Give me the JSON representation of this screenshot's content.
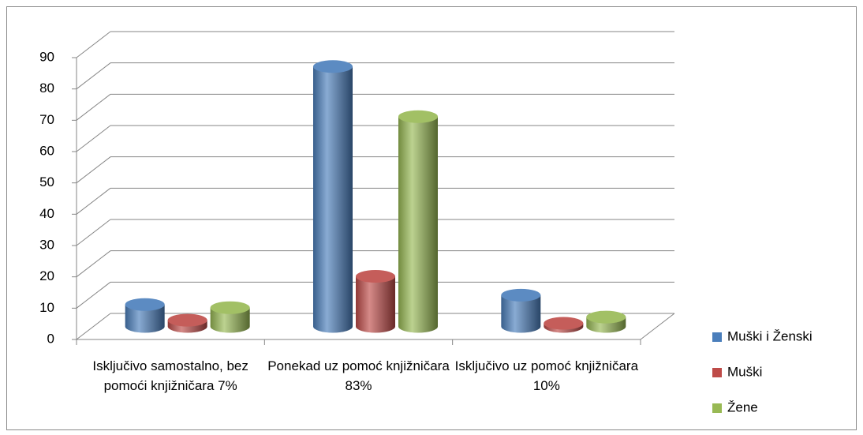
{
  "chart_data": {
    "type": "bar3d",
    "categories": [
      "Isključivo samostalno, bez pomoći knjižničara 7%",
      "Ponekad uz pomoć knjižničara 83%",
      "Isključivo uz pomoć knjižničara 10%"
    ],
    "series": [
      {
        "name": "Muški i Ženski",
        "color": "#4a7ebb",
        "values": [
          7,
          83,
          10
        ]
      },
      {
        "name": "Muški",
        "color": "#be4b48",
        "values": [
          2,
          16,
          1
        ]
      },
      {
        "name": "Žene",
        "color": "#98b954",
        "values": [
          6,
          67,
          3
        ]
      }
    ],
    "ylim": [
      0,
      90
    ],
    "yticks": [
      0,
      10,
      20,
      30,
      40,
      50,
      60,
      70,
      80,
      90
    ],
    "grid": true,
    "legend": "right"
  }
}
